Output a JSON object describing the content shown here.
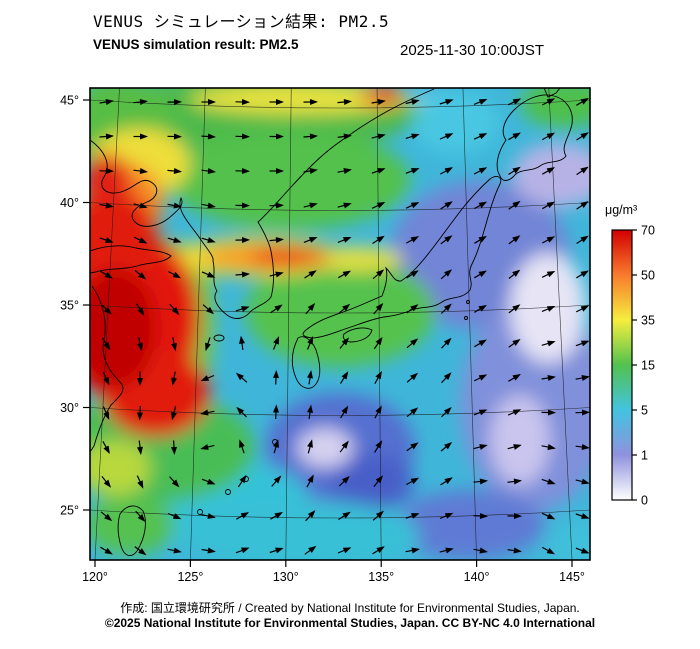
{
  "header": {
    "title_jp": "VENUS シミュレーション結果: PM2.5",
    "title_en": "VENUS simulation result: PM2.5",
    "timestamp": "2025-11-30 10:00JST"
  },
  "map": {
    "lat_ticks": [
      "45°",
      "40°",
      "35°",
      "30°",
      "25°"
    ],
    "lon_ticks": [
      "120°",
      "125°",
      "130°",
      "135°",
      "140°",
      "145°"
    ]
  },
  "colorbar": {
    "unit": "μg/m³",
    "ticks": [
      "70",
      "50",
      "35",
      "15",
      "5",
      "1",
      "0"
    ],
    "colors": [
      "#d10000",
      "#f87b2d",
      "#f5ee3e",
      "#52c24e",
      "#43c3e0",
      "#8f92dd",
      "#ffffff"
    ]
  },
  "footer": {
    "credit": "作成: 国立環境研究所 / Created by National Institute for Environmental Studies, Japan.",
    "copyright": "©2025 National Institute for Environmental Studies, Japan. CC BY-NC 4.0 International"
  }
}
